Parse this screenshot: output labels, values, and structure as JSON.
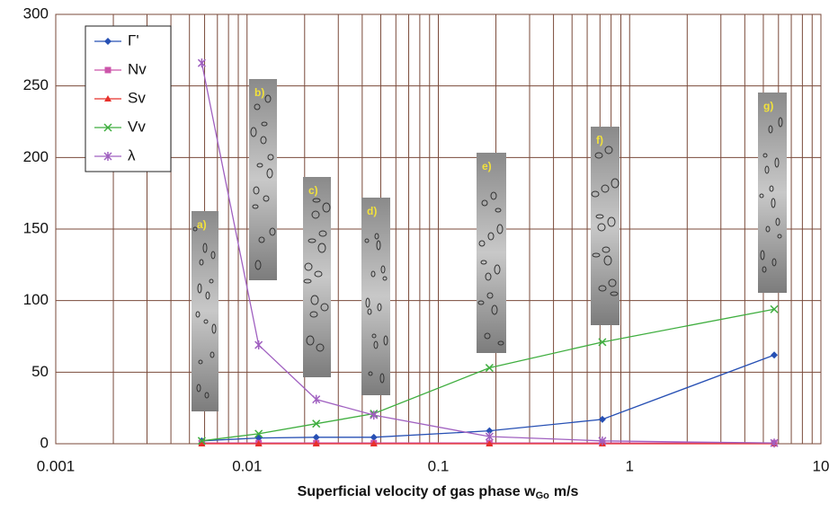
{
  "chart_data": {
    "type": "line",
    "x_scale": "log",
    "xlabel_parts": [
      "Superficial velocity of gas phase w",
      "Go",
      "m/s"
    ],
    "x": [
      0.0058,
      0.0115,
      0.023,
      0.046,
      0.185,
      0.72,
      5.7
    ],
    "series": [
      {
        "name": "Γ'",
        "color": "#2750b4",
        "marker": "diamond",
        "values": [
          2,
          4,
          4.5,
          4.5,
          9,
          17,
          62
        ]
      },
      {
        "name": "Nv",
        "color": "#cc55aa",
        "marker": "square",
        "values": [
          0.5,
          0.5,
          0.5,
          0.5,
          0.5,
          0.5,
          0.5
        ]
      },
      {
        "name": "Sv",
        "color": "#e8302a",
        "marker": "triangle",
        "values": [
          0,
          0,
          0,
          0,
          0,
          0,
          0
        ]
      },
      {
        "name": "Vv",
        "color": "#3fae3f",
        "marker": "x",
        "values": [
          2,
          7,
          14,
          21,
          53,
          71,
          94
        ]
      },
      {
        "name": "λ",
        "color": "#a060c0",
        "marker": "star",
        "values": [
          266,
          69,
          31,
          20,
          5,
          2,
          0.5
        ]
      }
    ],
    "xlim": [
      0.001,
      10
    ],
    "xticks": [
      0.001,
      0.01,
      0.1,
      1,
      10
    ],
    "ylim": [
      0,
      300
    ],
    "yticks": [
      0,
      50,
      100,
      150,
      200,
      250,
      300
    ],
    "grid": true,
    "minor_x_grid": true,
    "legend": "upper left",
    "annotations": [
      "a)",
      "b)",
      "c)",
      "d)",
      "e)",
      "f)",
      "g)"
    ]
  }
}
